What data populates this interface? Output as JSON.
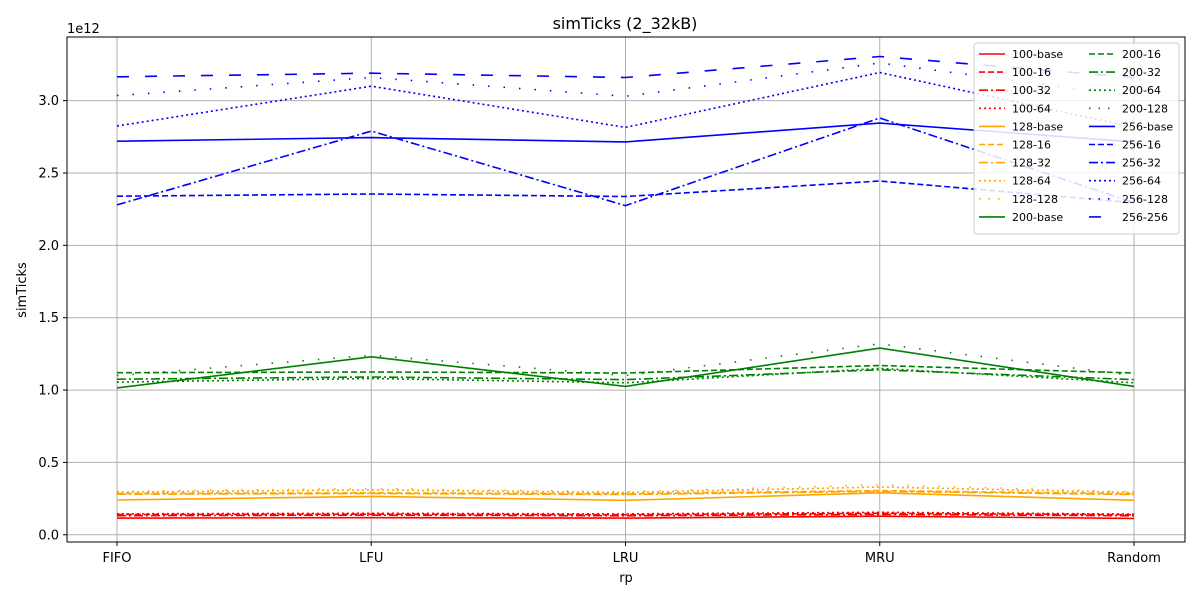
{
  "chart_data": {
    "type": "line",
    "title": "simTicks (2_32kB)",
    "xlabel": "rp",
    "ylabel": "simTicks",
    "offset_text": "1e12",
    "categories": [
      "FIFO",
      "LFU",
      "LRU",
      "MRU",
      "Random"
    ],
    "ylim": [
      -0.05,
      3.44
    ],
    "yticks": [
      0.0,
      0.5,
      1.0,
      1.5,
      2.0,
      2.5,
      3.0
    ],
    "ytick_labels": [
      "0.0",
      "0.5",
      "1.0",
      "1.5",
      "2.0",
      "2.5",
      "3.0"
    ],
    "grid": true,
    "legend_position": "top-right",
    "series": [
      {
        "name": "100-base",
        "color": "#ff0000",
        "style": "solid",
        "values": [
          0.115,
          0.118,
          0.115,
          0.128,
          0.113
        ]
      },
      {
        "name": "100-16",
        "color": "#ff0000",
        "style": "dashed",
        "values": [
          0.14,
          0.142,
          0.139,
          0.148,
          0.139
        ]
      },
      {
        "name": "100-32",
        "color": "#ff0000",
        "style": "dashdot",
        "values": [
          0.132,
          0.135,
          0.131,
          0.141,
          0.131
        ]
      },
      {
        "name": "100-64",
        "color": "#ff0000",
        "style": "dotted",
        "values": [
          0.145,
          0.148,
          0.144,
          0.155,
          0.143
        ]
      },
      {
        "name": "128-base",
        "color": "#ffa500",
        "style": "solid",
        "values": [
          0.24,
          0.265,
          0.238,
          0.29,
          0.238
        ]
      },
      {
        "name": "128-16",
        "color": "#ffa500",
        "style": "dashed",
        "values": [
          0.285,
          0.29,
          0.283,
          0.305,
          0.283
        ]
      },
      {
        "name": "128-32",
        "color": "#ffa500",
        "style": "dashdot",
        "values": [
          0.28,
          0.285,
          0.278,
          0.3,
          0.278
        ]
      },
      {
        "name": "128-64",
        "color": "#ffa500",
        "style": "dotted",
        "values": [
          0.295,
          0.31,
          0.292,
          0.33,
          0.292
        ]
      },
      {
        "name": "128-128",
        "color": "#ffa500",
        "style": "sparse",
        "values": [
          0.3,
          0.32,
          0.297,
          0.345,
          0.297
        ]
      },
      {
        "name": "200-base",
        "color": "#008000",
        "style": "solid",
        "values": [
          1.015,
          1.23,
          1.025,
          1.29,
          1.025
        ]
      },
      {
        "name": "200-16",
        "color": "#008000",
        "style": "dashed",
        "values": [
          1.12,
          1.125,
          1.118,
          1.17,
          1.118
        ]
      },
      {
        "name": "200-32",
        "color": "#008000",
        "style": "dashdot",
        "values": [
          1.075,
          1.09,
          1.072,
          1.14,
          1.072
        ]
      },
      {
        "name": "200-64",
        "color": "#008000",
        "style": "dotted",
        "values": [
          1.055,
          1.08,
          1.05,
          1.15,
          1.05
        ]
      },
      {
        "name": "200-128",
        "color": "#008000",
        "style": "sparse",
        "values": [
          1.1,
          1.24,
          1.1,
          1.32,
          1.1
        ]
      },
      {
        "name": "256-base",
        "color": "#0000ff",
        "style": "solid",
        "values": [
          2.72,
          2.745,
          2.715,
          2.845,
          2.715
        ]
      },
      {
        "name": "256-16",
        "color": "#0000ff",
        "style": "dashed",
        "values": [
          2.34,
          2.355,
          2.338,
          2.445,
          2.295
        ]
      },
      {
        "name": "256-32",
        "color": "#0000ff",
        "style": "dashdot",
        "values": [
          2.28,
          2.79,
          2.275,
          2.88,
          2.295
        ]
      },
      {
        "name": "256-64",
        "color": "#0000ff",
        "style": "dotted",
        "values": [
          2.825,
          3.1,
          2.815,
          3.195,
          2.815
        ]
      },
      {
        "name": "256-128",
        "color": "#0000ff",
        "style": "sparse",
        "values": [
          3.035,
          3.16,
          3.03,
          3.26,
          3.03
        ]
      },
      {
        "name": "256-256",
        "color": "#0000ff",
        "style": "longdash",
        "values": [
          3.165,
          3.19,
          3.16,
          3.305,
          3.16
        ]
      }
    ]
  }
}
